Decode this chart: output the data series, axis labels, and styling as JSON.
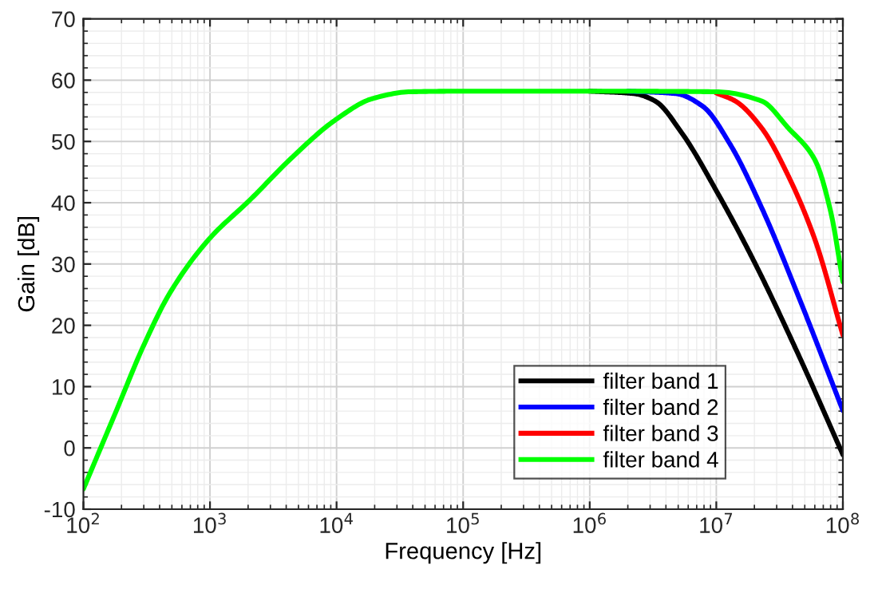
{
  "chart_data": {
    "type": "line",
    "xlabel": "Frequency [Hz]",
    "ylabel": "Gain [dB]",
    "log": "x",
    "grid": true,
    "legend": "bottom right",
    "line_style": "solid",
    "xlim": [
      100,
      100000000
    ],
    "ylim": [
      -10,
      70
    ],
    "xticks": [
      {
        "value": 100,
        "label": "10$^{2}$"
      },
      {
        "value": 1000,
        "label": "10$^{3}$"
      },
      {
        "value": 10000,
        "label": "10$^{4}$"
      },
      {
        "value": 100000,
        "label": "10$^{5}$"
      },
      {
        "value": 1000000,
        "label": "10$^{6}$"
      },
      {
        "value": 10000000,
        "label": "10$^{7}$"
      },
      {
        "value": 100000000,
        "label": "10$^{8}$"
      }
    ],
    "yticks": [
      -10,
      0,
      10,
      20,
      30,
      40,
      50,
      60,
      70
    ],
    "series": [
      {
        "name": "filter band 1",
        "color": "#000000",
        "x": [
          1000000,
          2240000,
          3280000,
          5330000,
          10100000,
          20700000,
          45000000,
          100000000
        ],
        "values": [
          58.2,
          57.8,
          56.6,
          51.4,
          41.8,
          29.7,
          15.0,
          -1.1
        ]
      },
      {
        "name": "filter band 2",
        "color": "#0000ff",
        "x": [
          2000000,
          4790000,
          7850000,
          12800000,
          22800000,
          45000000,
          100000000
        ],
        "values": [
          58.2,
          57.8,
          55.7,
          49.6,
          39.2,
          24.5,
          6.1
        ]
      },
      {
        "name": "filter band 3",
        "color": "#ff0000",
        "x": [
          10000000,
          14100000,
          22800000,
          37000000,
          60100000,
          100000000
        ],
        "values": [
          57.9,
          56.6,
          52.2,
          44.4,
          34.0,
          18.4
        ]
      },
      {
        "name": "filter band 4",
        "color": "#00ff00",
        "x": [
          100,
          184,
          299,
          486,
          977,
          2080,
          4510,
          9770,
          19300,
          38000,
          100000,
          1000000,
          10000000,
          22800000,
          37000000,
          60100000,
          80400000,
          100000000
        ],
        "values": [
          -6.7,
          6.3,
          16.7,
          25.4,
          34.0,
          40.5,
          47.5,
          53.5,
          57.0,
          58.1,
          58.2,
          58.2,
          58.1,
          56.6,
          52.2,
          47.0,
          38.4,
          27.1
        ]
      }
    ]
  }
}
